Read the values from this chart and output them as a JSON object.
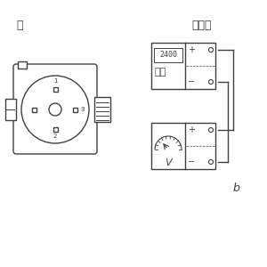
{
  "bg_color": "#ffffff",
  "line_color": "#404040",
  "title_left": "流",
  "title_right": "电压检",
  "label_b": "b",
  "power_label": "电源",
  "display_text": "2400",
  "voltmeter_label": "V",
  "figsize": [
    3.0,
    3.0
  ],
  "dpi": 100
}
